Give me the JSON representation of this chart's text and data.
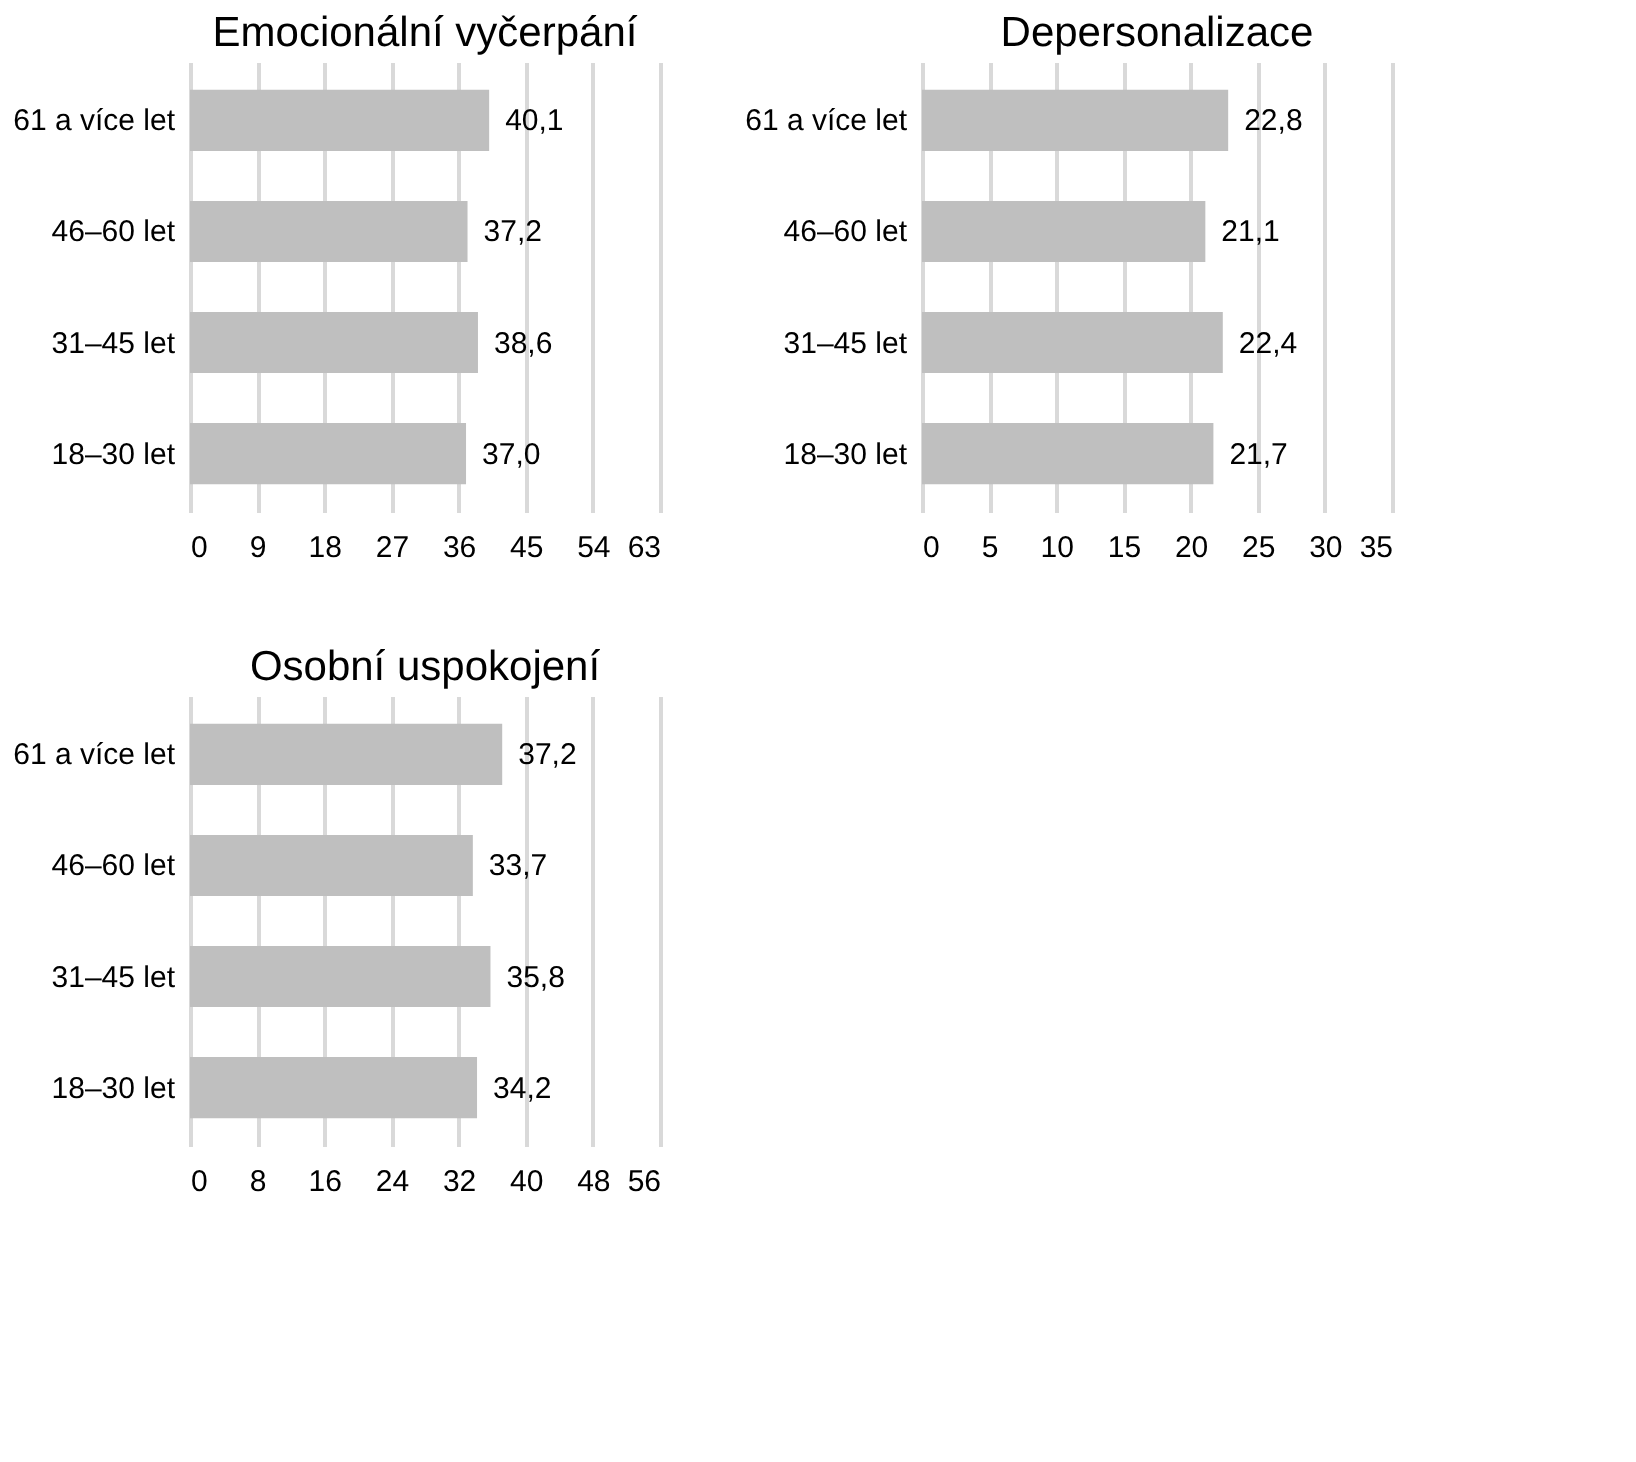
{
  "chart_data": [
    {
      "type": "bar",
      "orientation": "horizontal",
      "title": "Emocionální vyčerpání",
      "categories": [
        "61 a více let",
        "46–60 let",
        "31–45 let",
        "18–30 let"
      ],
      "values": [
        40.1,
        37.2,
        38.6,
        37.0
      ],
      "value_labels": [
        "40,1",
        "37,2",
        "38,6",
        "37,0"
      ],
      "color": "#bfbfbf",
      "xlim": [
        0,
        63
      ],
      "xticks": [
        0,
        9,
        18,
        27,
        36,
        45,
        54,
        63
      ],
      "grid": "x"
    },
    {
      "type": "bar",
      "orientation": "horizontal",
      "title": "Depersonalizace",
      "categories": [
        "61 a více let",
        "46–60 let",
        "31–45 let",
        "18–30 let"
      ],
      "values": [
        22.8,
        21.1,
        22.4,
        21.7
      ],
      "value_labels": [
        "22,8",
        "21,1",
        "22,4",
        "21,7"
      ],
      "color": "#bfbfbf",
      "xlim": [
        0,
        35
      ],
      "xticks": [
        0,
        5,
        10,
        15,
        20,
        25,
        30,
        35
      ],
      "grid": "x"
    },
    {
      "type": "bar",
      "orientation": "horizontal",
      "title": "Osobní uspokojení",
      "categories": [
        "61 a více let",
        "46–60 let",
        "31–45 let",
        "18–30 let"
      ],
      "values": [
        37.2,
        33.7,
        35.8,
        34.2
      ],
      "value_labels": [
        "37,2",
        "33,7",
        "35,8",
        "34,2"
      ],
      "color": "#bfbfbf",
      "xlim": [
        0,
        56
      ],
      "xticks": [
        0,
        8,
        16,
        24,
        32,
        40,
        48,
        56
      ],
      "grid": "x"
    }
  ]
}
